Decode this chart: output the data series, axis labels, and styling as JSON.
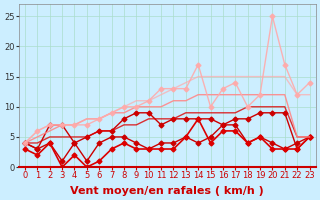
{
  "x": [
    0,
    1,
    2,
    3,
    4,
    5,
    6,
    7,
    8,
    9,
    10,
    11,
    12,
    13,
    14,
    15,
    16,
    17,
    18,
    19,
    20,
    21,
    22,
    23
  ],
  "lines": [
    {
      "y": [
        4,
        3,
        7,
        7,
        4,
        5,
        6,
        6,
        8,
        9,
        9,
        7,
        8,
        8,
        8,
        8,
        7,
        8,
        8,
        9,
        9,
        9,
        3,
        5
      ],
      "color": "#cc0000",
      "alpha": 1.0,
      "lw": 1.0,
      "marker": "D",
      "ms": 2.5
    },
    {
      "y": [
        4,
        3,
        4,
        1,
        4,
        1,
        4,
        5,
        5,
        4,
        3,
        4,
        4,
        5,
        4,
        5,
        7,
        7,
        4,
        5,
        4,
        3,
        4,
        5
      ],
      "color": "#cc0000",
      "alpha": 1.0,
      "lw": 1.0,
      "marker": "D",
      "ms": 2.5
    },
    {
      "y": [
        3,
        2,
        4,
        0,
        2,
        0,
        1,
        3,
        4,
        3,
        3,
        3,
        3,
        5,
        8,
        4,
        6,
        6,
        4,
        5,
        3,
        3,
        3,
        5
      ],
      "color": "#dd0000",
      "alpha": 1.0,
      "lw": 1.2,
      "marker": "D",
      "ms": 2.5
    },
    {
      "y": [
        4,
        4,
        5,
        5,
        5,
        5,
        6,
        6,
        7,
        7,
        8,
        8,
        8,
        9,
        9,
        9,
        9,
        9,
        10,
        10,
        10,
        10,
        5,
        5
      ],
      "color": "#dd0000",
      "alpha": 0.8,
      "lw": 1.0,
      "marker": null,
      "ms": 0
    },
    {
      "y": [
        4,
        5,
        6,
        7,
        7,
        8,
        8,
        9,
        9,
        10,
        10,
        10,
        11,
        11,
        12,
        12,
        12,
        12,
        12,
        12,
        12,
        12,
        5,
        5
      ],
      "color": "#ff8888",
      "alpha": 0.9,
      "lw": 1.0,
      "marker": null,
      "ms": 0
    },
    {
      "y": [
        4,
        6,
        7,
        7,
        7,
        7,
        8,
        9,
        10,
        10,
        11,
        13,
        13,
        13,
        17,
        10,
        13,
        14,
        10,
        12,
        25,
        17,
        12,
        14
      ],
      "color": "#ffaaaa",
      "alpha": 0.9,
      "lw": 1.0,
      "marker": "D",
      "ms": 2.5
    },
    {
      "y": [
        4,
        6,
        7,
        7,
        7,
        8,
        8,
        9,
        10,
        11,
        11,
        12,
        13,
        14,
        15,
        15,
        15,
        15,
        15,
        15,
        15,
        15,
        12,
        12
      ],
      "color": "#ffaaaa",
      "alpha": 0.7,
      "lw": 1.0,
      "marker": null,
      "ms": 0
    }
  ],
  "xlabel": "Vent moyen/en rafales ( km/h )",
  "ylim": [
    0,
    27
  ],
  "yticks": [
    0,
    5,
    10,
    15,
    20,
    25
  ],
  "xticks": [
    0,
    1,
    2,
    3,
    4,
    5,
    6,
    7,
    8,
    9,
    10,
    11,
    12,
    13,
    14,
    15,
    16,
    17,
    18,
    19,
    20,
    21,
    22,
    23
  ],
  "bg_color": "#cceeff",
  "grid_color": "#aaddcc",
  "xlabel_color": "#cc0000",
  "xlabel_fontsize": 8,
  "tick_fontsize": 6,
  "ytick_color": "#333333",
  "xtick_color": "#cc0000"
}
